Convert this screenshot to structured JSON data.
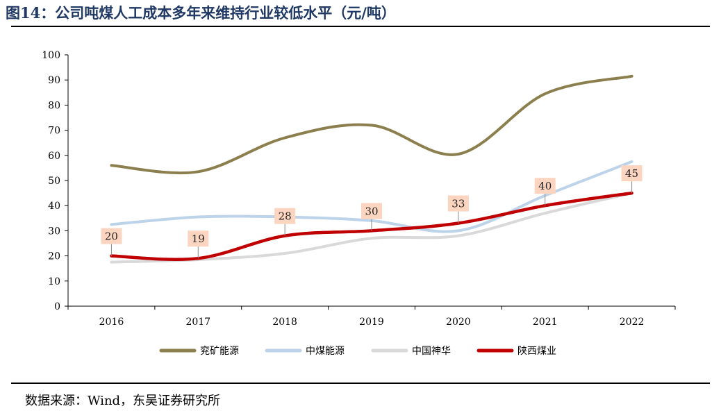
{
  "header": {
    "title": "图14：公司吨煤人工成本多年来维持行业较低水平（元/吨）"
  },
  "footer": {
    "source": "数据来源：Wind，东吴证券研究所"
  },
  "chart_data": {
    "type": "line",
    "categories": [
      "2016",
      "2017",
      "2018",
      "2019",
      "2020",
      "2021",
      "2022"
    ],
    "ylim": [
      0,
      100
    ],
    "yticks": [
      0,
      10,
      20,
      30,
      40,
      50,
      60,
      70,
      80,
      90,
      100
    ],
    "grid": false,
    "legend_position": "bottom",
    "series": [
      {
        "name": "兖矿能源",
        "color": "#8c7f4e",
        "values": [
          56,
          53.5,
          67,
          72,
          60.5,
          84.5,
          91.5
        ],
        "labels": false
      },
      {
        "name": "中煤能源",
        "color": "#bcd3ea",
        "values": [
          32.5,
          35.5,
          35.5,
          34,
          30,
          44,
          57.5
        ],
        "labels": false
      },
      {
        "name": "中国神华",
        "color": "#d9d9d9",
        "values": [
          17.5,
          18.5,
          21,
          27,
          28,
          37,
          45
        ],
        "labels": false
      },
      {
        "name": "陕西煤业",
        "color": "#c00000",
        "values": [
          20,
          19,
          28,
          30,
          33,
          40,
          45
        ],
        "labels": true
      }
    ]
  }
}
